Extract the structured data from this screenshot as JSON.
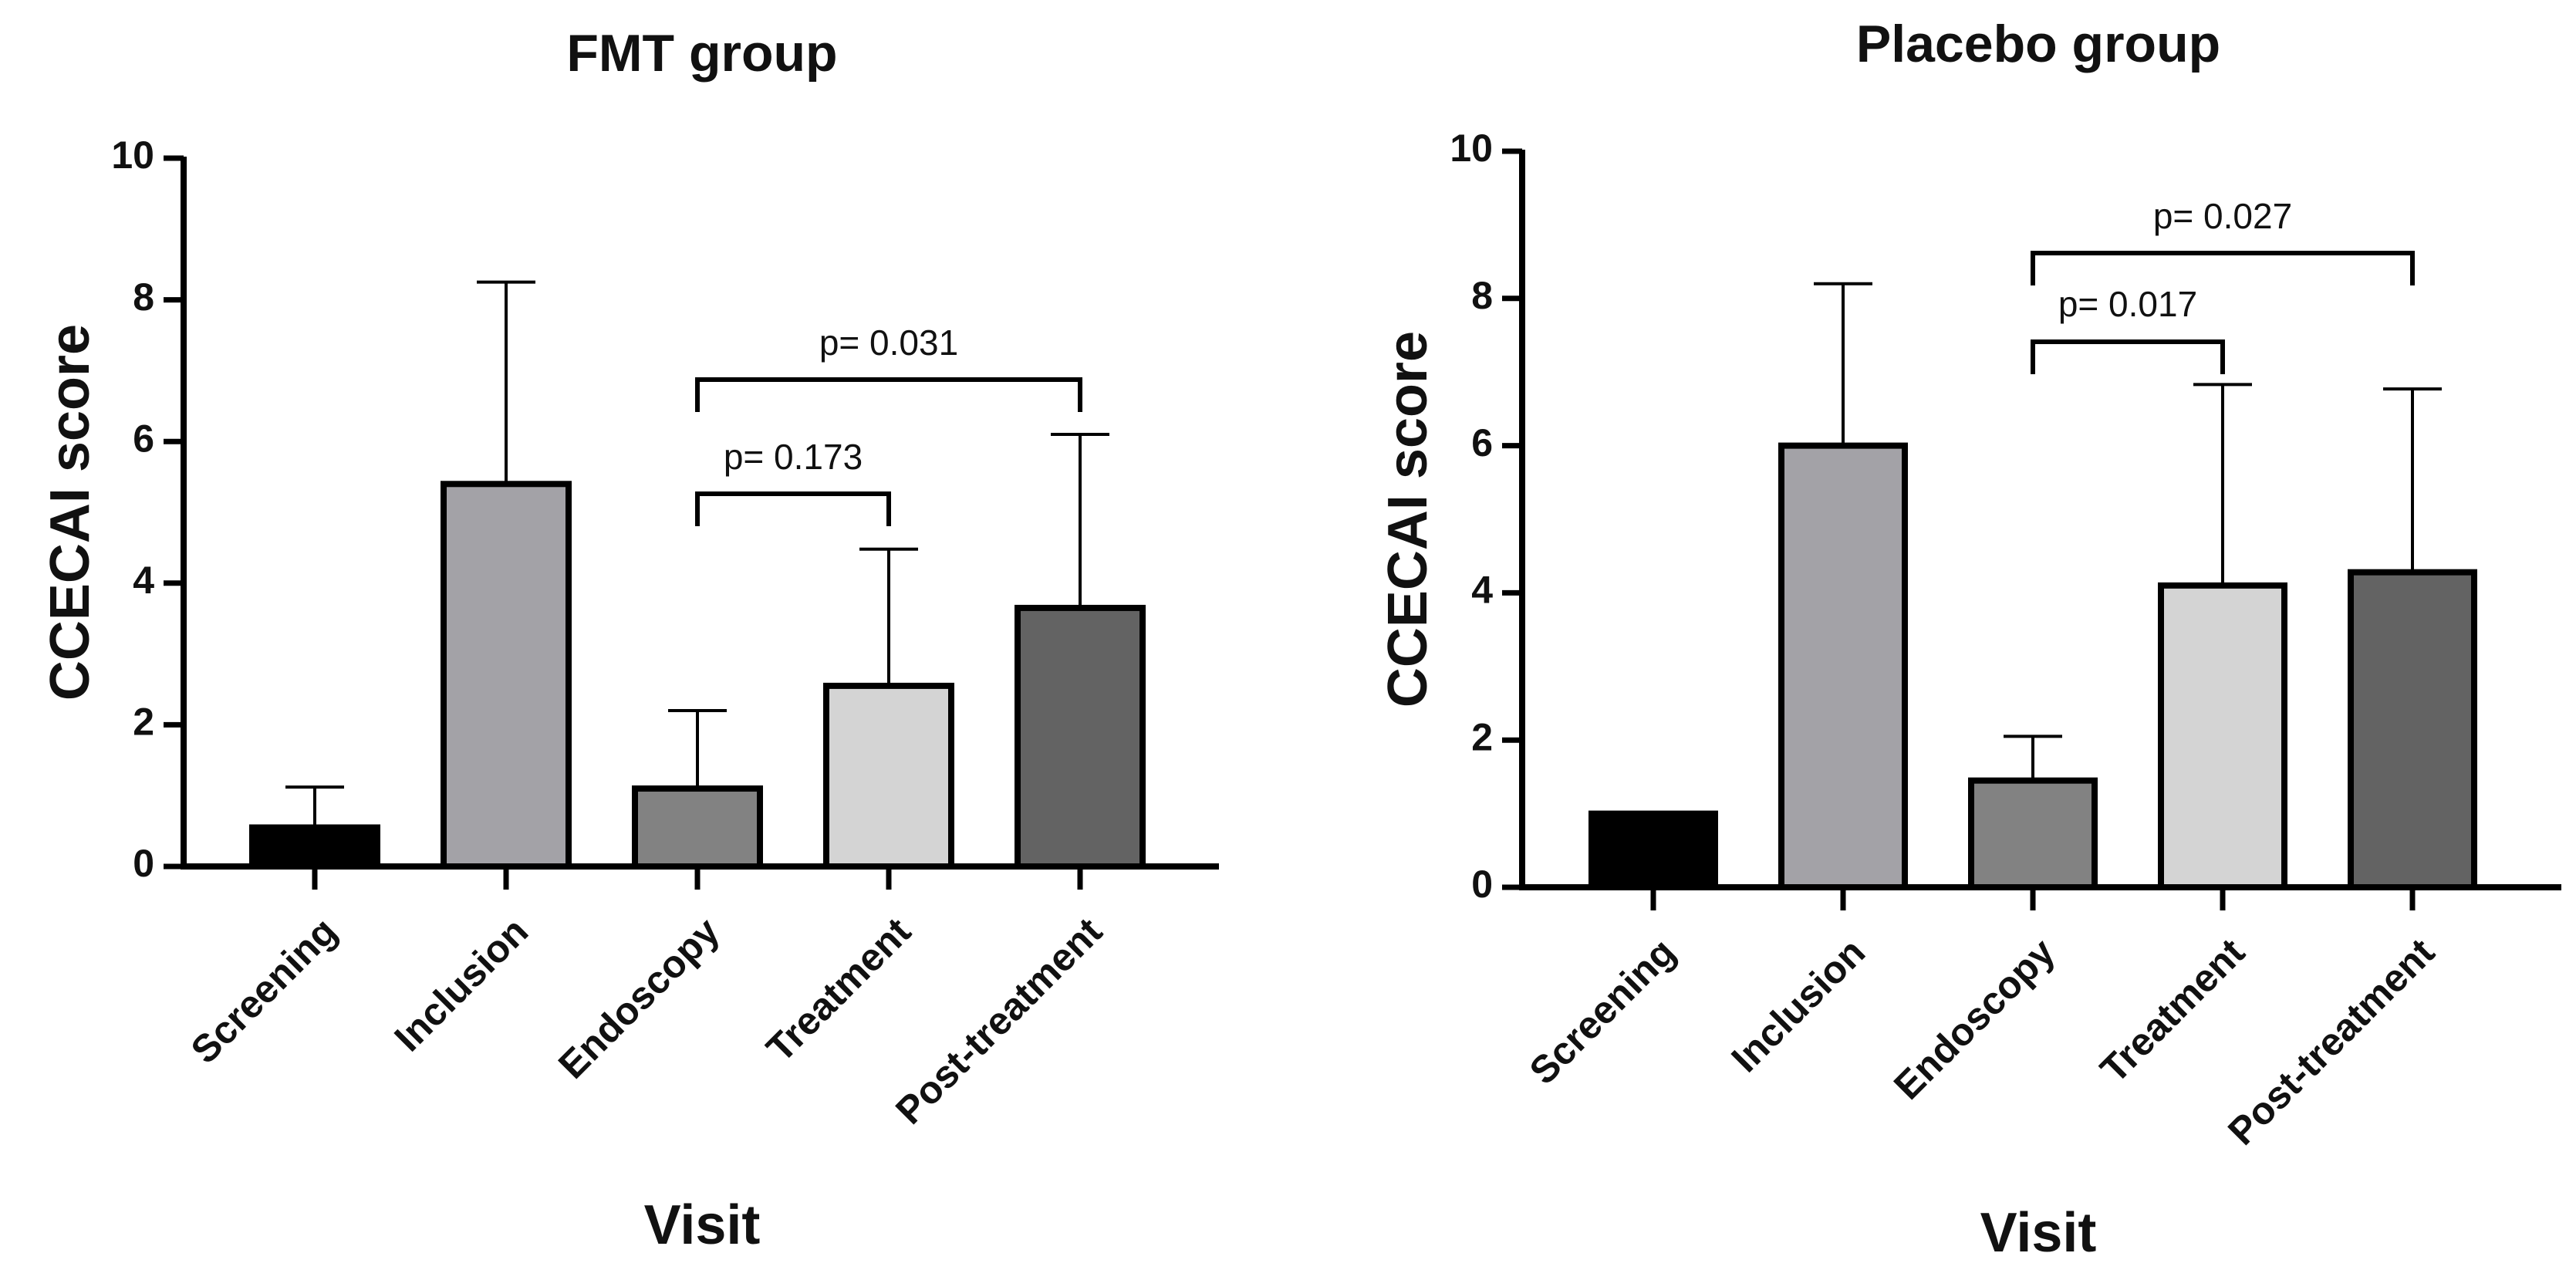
{
  "chart_data": [
    {
      "type": "bar",
      "title": "FMT group",
      "xlabel": "Visit",
      "ylabel": "CCECAI score",
      "ylim": [
        0,
        10
      ],
      "yticks": [
        "0",
        "2",
        "4",
        "6",
        "8",
        "10"
      ],
      "categories": [
        "Screening",
        "Inclusion",
        "Endoscopy",
        "Treatment",
        "Post-treatment"
      ],
      "values": [
        0.55,
        5.4,
        1.1,
        2.55,
        3.65
      ],
      "error_upper": [
        1.12,
        8.25,
        2.2,
        4.48,
        6.1
      ],
      "colors": [
        "#000000",
        "#a3a2a7",
        "#828282",
        "#d4d4d4",
        "#636363"
      ],
      "annotations": [
        {
          "label": "p= 0.173",
          "from": "Endoscopy",
          "to": "Treatment"
        },
        {
          "label": "p= 0.031",
          "from": "Endoscopy",
          "to": "Post-treatment"
        }
      ]
    },
    {
      "type": "bar",
      "title": "Placebo group",
      "xlabel": "Visit",
      "ylabel": "CCECAI score",
      "ylim": [
        0,
        10
      ],
      "yticks": [
        "0",
        "2",
        "4",
        "6",
        "8",
        "10"
      ],
      "categories": [
        "Screening",
        "Inclusion",
        "Endoscopy",
        "Treatment",
        "Post-treatment"
      ],
      "values": [
        1.0,
        6.0,
        1.45,
        4.1,
        4.28
      ],
      "error_upper": [
        1.0,
        8.2,
        2.05,
        6.83,
        6.77
      ],
      "colors": [
        "#000000",
        "#a3a2a7",
        "#828282",
        "#d4d4d4",
        "#636363"
      ],
      "annotations": [
        {
          "label": "p= 0.017",
          "from": "Endoscopy",
          "to": "Treatment"
        },
        {
          "label": "p= 0.027",
          "from": "Endoscopy",
          "to": "Post-treatment"
        }
      ]
    }
  ]
}
